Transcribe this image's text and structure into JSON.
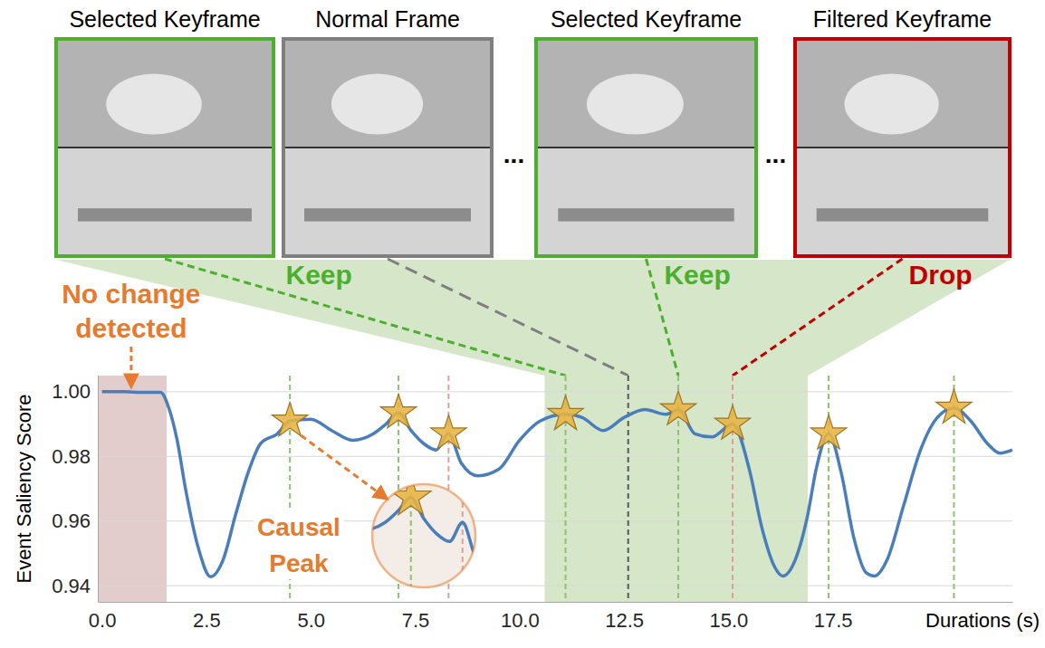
{
  "chart_data": {
    "type": "line",
    "x": [
      0,
      0.5,
      1.0,
      1.4,
      1.6,
      1.8,
      2.0,
      2.3,
      2.6,
      2.9,
      3.2,
      3.5,
      3.8,
      4.2,
      4.5,
      5.0,
      5.5,
      6.0,
      6.5,
      6.8,
      7.1,
      7.4,
      7.7,
      8.0,
      8.3,
      8.6,
      9.0,
      9.5,
      10.0,
      10.5,
      11.1,
      11.5,
      12.0,
      12.5,
      13.0,
      13.5,
      13.8,
      14.2,
      14.6,
      15.1,
      15.5,
      15.8,
      16.1,
      16.3,
      16.6,
      16.9,
      17.1,
      17.4,
      17.7,
      18.0,
      18.3,
      18.5,
      18.8,
      19.2,
      19.6,
      20.0,
      20.4,
      20.8,
      21.2,
      21.5,
      21.8
    ],
    "series": [
      {
        "color": "#4a7ebb",
        "values": [
          1.0,
          1.0,
          0.9998,
          0.9998,
          0.995,
          0.985,
          0.97,
          0.952,
          0.9428,
          0.948,
          0.962,
          0.975,
          0.984,
          0.987,
          0.991,
          0.9915,
          0.988,
          0.985,
          0.987,
          0.99,
          0.9935,
          0.988,
          0.984,
          0.982,
          0.987,
          0.978,
          0.974,
          0.976,
          0.985,
          0.991,
          0.993,
          0.992,
          0.988,
          0.992,
          0.9945,
          0.993,
          0.9945,
          0.987,
          0.986,
          0.99,
          0.976,
          0.958,
          0.946,
          0.943,
          0.948,
          0.962,
          0.976,
          0.987,
          0.975,
          0.955,
          0.944,
          0.943,
          0.948,
          0.965,
          0.982,
          0.992,
          0.995,
          0.991,
          0.984,
          0.981,
          0.982
        ]
      }
    ],
    "xlim": [
      -0.1,
      21.8
    ],
    "xticks": [
      {
        "value": 0,
        "label": "0.0"
      },
      2.5,
      {
        "value": 5,
        "label": "5.0"
      },
      7.5,
      {
        "value": 10,
        "label": "10.0"
      },
      12.5,
      {
        "value": 15,
        "label": "15.0"
      },
      17.5
    ],
    "ylim": [
      0.935,
      1.005
    ],
    "yticks": [
      0.94,
      0.96,
      0.98,
      {
        "value": 1,
        "label": "1.00"
      }
    ],
    "x_label": "Durations (s)",
    "y_label": "Event Saliency Score",
    "grid": true,
    "keyframes": {
      "x": [
        4.5,
        7.1,
        8.3,
        11.1,
        13.8,
        15.1,
        17.4,
        20.4
      ],
      "y": [
        0.991,
        0.9935,
        0.987,
        0.993,
        0.9945,
        0.99,
        0.987,
        0.995
      ],
      "color": "#e8b441",
      "marker": "star"
    },
    "keyframe_lines": {
      "x": [
        4.5,
        7.1,
        8.3,
        11.1,
        12.6,
        13.8,
        15.1,
        17.4,
        20.4
      ],
      "colors": [
        "#8dc26f",
        "#8dc26f",
        "#d9a0a0",
        "#8dc26f",
        "#595959",
        "#8dc26f",
        "#d9a0a0",
        "#8dc26f",
        "#8dc26f"
      ]
    },
    "regions": [
      {
        "xlim": [
          -0.1,
          1.55
        ],
        "color": "#e2cccc"
      },
      {
        "xlim": [
          10.6,
          16.9
        ],
        "color": "#d6e6c9"
      }
    ],
    "annotations": [
      {
        "text": "No change detected",
        "x": 0.7,
        "y": 1.0,
        "color": "#e67a2e"
      },
      {
        "text": "Causal Peak",
        "xlim": [
          6.2,
          8.6
        ],
        "ylim": [
          0.97,
          0.997
        ],
        "color": "#e67a2e"
      }
    ],
    "frames": [
      {
        "label": "Selected Keyframe",
        "x": 11.1,
        "color": "#4caf30",
        "annotation": "Keep"
      },
      {
        "label": "Normal Frame",
        "x": 12.6,
        "color": "#7f7f7f"
      },
      {
        "label": "Selected Keyframe",
        "x": 13.8,
        "color": "#4caf30",
        "annotation": "Keep"
      },
      {
        "label": "Filtered Keyframe",
        "x": 15.1,
        "color": "#c00000",
        "annotation": "Drop"
      }
    ],
    "separator": "..."
  }
}
